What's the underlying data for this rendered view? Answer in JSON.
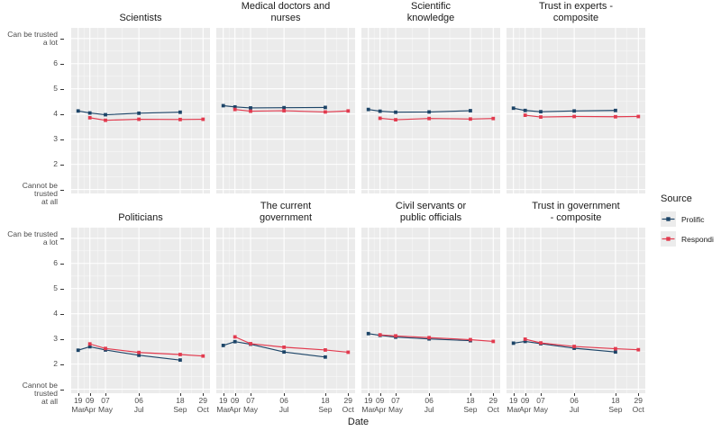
{
  "chart_data": {
    "type": "line",
    "title": "",
    "x": {
      "title": "Date",
      "ticks": [
        {
          "day": "19",
          "month": "Mar",
          "day_offset": 0
        },
        {
          "day": "09",
          "month": "Apr",
          "day_offset": 21
        },
        {
          "day": "07",
          "month": "May",
          "day_offset": 49
        },
        {
          "day": "06",
          "month": "Jul",
          "day_offset": 109
        },
        {
          "day": "18",
          "month": "Sep",
          "day_offset": 183
        },
        {
          "day": "29",
          "month": "Oct",
          "day_offset": 224
        }
      ]
    },
    "y": {
      "min": 1,
      "max": 7,
      "ticks": [
        {
          "value": 7,
          "label": "Can be trusted\na lot"
        },
        {
          "value": 6,
          "label": "6"
        },
        {
          "value": 5,
          "label": "5"
        },
        {
          "value": 4,
          "label": "4"
        },
        {
          "value": 3,
          "label": "3"
        },
        {
          "value": 2,
          "label": "2"
        },
        {
          "value": 1,
          "label": "Cannot be trusted\nat all"
        }
      ]
    },
    "legend": {
      "title": "Source",
      "entries": [
        {
          "label": "Prolific",
          "color": "#1d4568"
        },
        {
          "label": "Respondi",
          "color": "#e23b4f"
        }
      ]
    },
    "style": {
      "panel_bg": "#ebebeb",
      "grid_major": "#ffffff",
      "grid_minor": "#f6f6f6",
      "axis_text": "#4d4d4d",
      "tick_color": "#333333",
      "legend_key_bg": "#ececec"
    },
    "facets": [
      {
        "title": "Scientists",
        "series": [
          {
            "name": "Prolific",
            "x_idx": [
              0,
              1,
              2,
              3,
              4
            ],
            "values": [
              4.12,
              4.04,
              3.97,
              4.03,
              4.07
            ]
          },
          {
            "name": "Respondi",
            "x_idx": [
              1,
              2,
              3,
              4,
              5
            ],
            "values": [
              3.85,
              3.75,
              3.79,
              3.78,
              3.79
            ]
          }
        ]
      },
      {
        "title": "Medical doctors and\nnurses",
        "series": [
          {
            "name": "Prolific",
            "x_idx": [
              0,
              1,
              2,
              3,
              4
            ],
            "values": [
              4.33,
              4.28,
              4.24,
              4.25,
              4.26
            ]
          },
          {
            "name": "Respondi",
            "x_idx": [
              1,
              2,
              3,
              4,
              5
            ],
            "values": [
              4.18,
              4.11,
              4.13,
              4.08,
              4.12
            ]
          }
        ]
      },
      {
        "title": "Scientific\nknowledge",
        "series": [
          {
            "name": "Prolific",
            "x_idx": [
              0,
              1,
              2,
              3,
              4
            ],
            "values": [
              4.18,
              4.11,
              4.07,
              4.08,
              4.13
            ]
          },
          {
            "name": "Respondi",
            "x_idx": [
              1,
              2,
              3,
              4,
              5
            ],
            "values": [
              3.83,
              3.77,
              3.82,
              3.8,
              3.82
            ]
          }
        ]
      },
      {
        "title": "Trust in experts -\ncomposite",
        "series": [
          {
            "name": "Prolific",
            "x_idx": [
              0,
              1,
              2,
              3,
              4
            ],
            "values": [
              4.23,
              4.14,
              4.09,
              4.12,
              4.14
            ]
          },
          {
            "name": "Respondi",
            "x_idx": [
              1,
              2,
              3,
              4,
              5
            ],
            "values": [
              3.95,
              3.88,
              3.9,
              3.89,
              3.9
            ]
          }
        ]
      },
      {
        "title": "Politicians",
        "series": [
          {
            "name": "Prolific",
            "x_idx": [
              0,
              1,
              2,
              3,
              4
            ],
            "values": [
              2.55,
              2.69,
              2.56,
              2.35,
              2.16
            ]
          },
          {
            "name": "Respondi",
            "x_idx": [
              1,
              2,
              3,
              4,
              5
            ],
            "values": [
              2.8,
              2.62,
              2.46,
              2.38,
              2.32
            ]
          }
        ]
      },
      {
        "title": "The current\ngovernment",
        "series": [
          {
            "name": "Prolific",
            "x_idx": [
              0,
              1,
              2,
              3,
              4
            ],
            "values": [
              2.74,
              2.89,
              2.79,
              2.48,
              2.28
            ]
          },
          {
            "name": "Respondi",
            "x_idx": [
              1,
              2,
              3,
              4,
              5
            ],
            "values": [
              3.08,
              2.81,
              2.67,
              2.56,
              2.47
            ]
          }
        ]
      },
      {
        "title": "Civil servants or\npublic officials",
        "series": [
          {
            "name": "Prolific",
            "x_idx": [
              0,
              1,
              2,
              3,
              4
            ],
            "values": [
              3.21,
              3.14,
              3.07,
              3.0,
              2.93
            ]
          },
          {
            "name": "Respondi",
            "x_idx": [
              1,
              2,
              3,
              4,
              5
            ],
            "values": [
              3.16,
              3.12,
              3.05,
              2.97,
              2.9
            ]
          }
        ]
      },
      {
        "title": "Trust in government\n- composite",
        "series": [
          {
            "name": "Prolific",
            "x_idx": [
              0,
              1,
              2,
              3,
              4
            ],
            "values": [
              2.83,
              2.9,
              2.81,
              2.63,
              2.48
            ]
          },
          {
            "name": "Respondi",
            "x_idx": [
              1,
              2,
              3,
              4,
              5
            ],
            "values": [
              2.99,
              2.84,
              2.7,
              2.61,
              2.57
            ]
          }
        ]
      }
    ]
  }
}
